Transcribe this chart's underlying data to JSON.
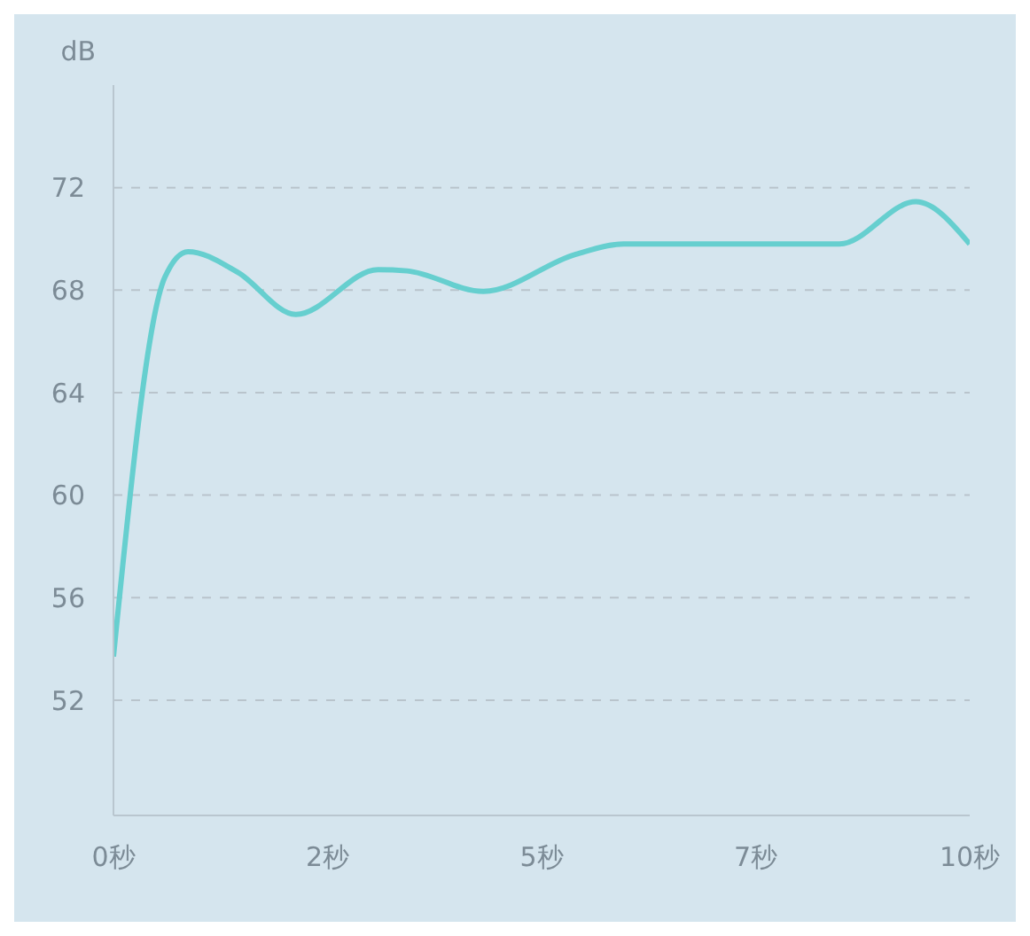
{
  "chart_data": {
    "type": "line",
    "ylabel": "dB",
    "x": [
      0,
      0.6,
      0.87,
      1.45,
      2.13,
      3.09,
      3.43,
      4.32,
      5.4,
      5.96,
      8.48,
      9.37,
      10
    ],
    "series": [
      {
        "color": "#66cfcf",
        "values": [
          53.7,
          68.5,
          69.5,
          68.7,
          67.05,
          68.8,
          68.75,
          67.95,
          69.4,
          69.8,
          69.8,
          71.45,
          69.8
        ]
      }
    ],
    "xlim": [
      0,
      10
    ],
    "xticks": [
      {
        "value": 0,
        "label": "0秒"
      },
      {
        "value": 2.5,
        "label": "2秒"
      },
      {
        "value": 5,
        "label": "5秒"
      },
      {
        "value": 7.5,
        "label": "7秒"
      },
      {
        "value": 10,
        "label": "10秒"
      }
    ],
    "ylim": [
      47.5,
      76
    ],
    "yticks": [
      52,
      56,
      60,
      64,
      68,
      72
    ],
    "grid": "y",
    "legend": false,
    "marker": "none",
    "line_style": "solid"
  }
}
